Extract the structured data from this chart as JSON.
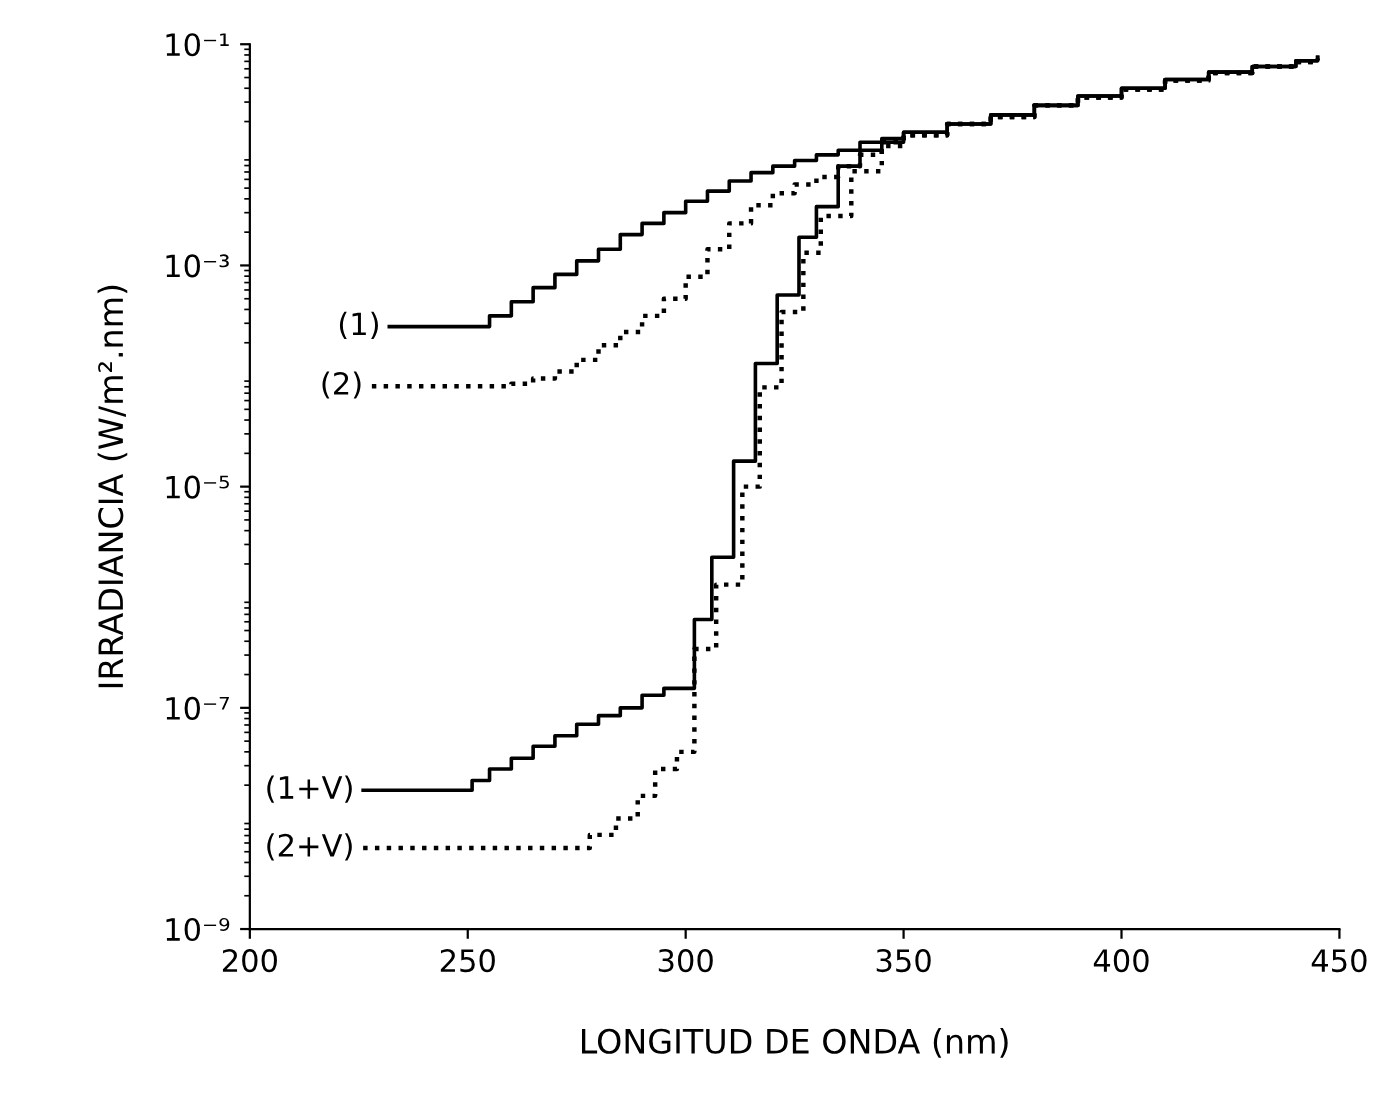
{
  "chart_data": {
    "type": "step",
    "xlabel": "LONGITUD DE ONDA (nm)",
    "ylabel": "IRRADIANCIA (W/m².nm)",
    "log": "y",
    "xlim": [
      200,
      450
    ],
    "xticks": [
      200,
      250,
      300,
      350,
      400,
      450
    ],
    "ylim": [
      1e-09,
      0.1
    ],
    "yticks": [
      {
        "value": 0.1,
        "label": "10⁻¹"
      },
      {
        "value": 0.001,
        "label": "10⁻³"
      },
      {
        "value": 1e-05,
        "label": "10⁻⁵"
      },
      {
        "value": 1e-07,
        "label": "10⁻⁷"
      },
      {
        "value": 1e-09,
        "label": "10⁻⁹"
      }
    ],
    "grid": false,
    "legend": false,
    "series": [
      {
        "name": "(1)",
        "color": "#000000",
        "line_style": "solid",
        "x": [
          232,
          250,
          255,
          260,
          265,
          270,
          275,
          280,
          285,
          290,
          295,
          300,
          305,
          310,
          315,
          320,
          325,
          330,
          335,
          340,
          345,
          350,
          360,
          370,
          380,
          390,
          400,
          410,
          420,
          430,
          440,
          445
        ],
        "values": [
          0.00028,
          0.00028,
          0.00035,
          0.00047,
          0.00063,
          0.00083,
          0.0011,
          0.0014,
          0.0019,
          0.0024,
          0.003,
          0.0038,
          0.0047,
          0.0058,
          0.0069,
          0.0079,
          0.0089,
          0.01,
          0.011,
          0.013,
          0.014,
          0.016,
          0.019,
          0.023,
          0.028,
          0.034,
          0.04,
          0.048,
          0.056,
          0.063,
          0.071,
          0.076
        ]
      },
      {
        "name": "(2)",
        "color": "#000000",
        "line_style": "dotted",
        "x": [
          228,
          250,
          260,
          265,
          270,
          275,
          280,
          285,
          290,
          295,
          300,
          305,
          310,
          315,
          320,
          325,
          330,
          335,
          340,
          345,
          350,
          360,
          370,
          380,
          390,
          400,
          410,
          420,
          430,
          440,
          445
        ],
        "values": [
          8.1e-05,
          8.1e-05,
          8.5e-05,
          9.5e-05,
          0.00011,
          0.00014,
          0.00019,
          0.00025,
          0.00035,
          0.0005,
          0.00079,
          0.0014,
          0.0024,
          0.0035,
          0.0045,
          0.0054,
          0.0063,
          0.0079,
          0.01,
          0.013,
          0.015,
          0.019,
          0.022,
          0.028,
          0.033,
          0.039,
          0.047,
          0.055,
          0.063,
          0.069,
          0.074
        ]
      },
      {
        "name": "(1+V)",
        "color": "#000000",
        "line_style": "solid",
        "x": [
          226,
          251,
          255,
          260,
          265,
          270,
          275,
          280,
          285,
          290,
          295,
          302,
          306,
          311,
          316,
          321,
          326,
          330,
          335,
          340,
          345,
          350,
          360,
          370,
          380,
          390,
          400,
          410,
          420,
          430,
          440,
          445
        ],
        "values": [
          1.8e-08,
          2.2e-08,
          2.8e-08,
          3.5e-08,
          4.5e-08,
          5.6e-08,
          7.1e-08,
          8.5e-08,
          1e-07,
          1.3e-07,
          1.5e-07,
          6.3e-07,
          2.3e-06,
          1.7e-05,
          0.00013,
          0.00054,
          0.0018,
          0.0034,
          0.0079,
          0.011,
          0.013,
          0.016,
          0.019,
          0.023,
          0.028,
          0.034,
          0.04,
          0.048,
          0.056,
          0.063,
          0.071,
          0.076
        ]
      },
      {
        "name": "(2+V)",
        "color": "#000000",
        "line_style": "dotted",
        "x": [
          226,
          272,
          278,
          284,
          289,
          293,
          298,
          302,
          307,
          313,
          317,
          322,
          327,
          331,
          338,
          345,
          350,
          360,
          370,
          380,
          390,
          400,
          410,
          420,
          430,
          440,
          445
        ],
        "values": [
          5.4e-09,
          5.4e-09,
          7.1e-09,
          1e-08,
          1.6e-08,
          2.8e-08,
          4e-08,
          3.4e-07,
          1.3e-06,
          1e-05,
          7.9e-05,
          0.00038,
          0.0013,
          0.0028,
          0.0071,
          0.012,
          0.015,
          0.019,
          0.022,
          0.028,
          0.033,
          0.039,
          0.047,
          0.055,
          0.063,
          0.069,
          0.074
        ]
      }
    ]
  }
}
